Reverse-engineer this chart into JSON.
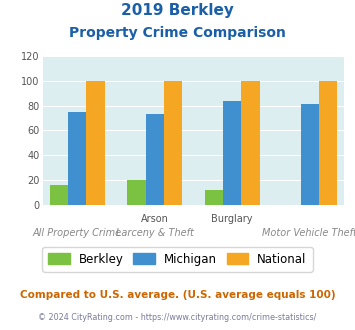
{
  "title_line1": "2019 Berkley",
  "title_line2": "Property Crime Comparison",
  "x_labels_top": [
    "",
    "Arson",
    "Burglary",
    ""
  ],
  "x_labels_bottom": [
    "All Property Crime",
    "Larceny & Theft",
    "",
    "Motor Vehicle Theft"
  ],
  "berkley": [
    16,
    20,
    12,
    0
  ],
  "michigan": [
    75,
    73,
    84,
    81
  ],
  "national": [
    100,
    100,
    100,
    100
  ],
  "color_berkley": "#7bc142",
  "color_michigan": "#4090d0",
  "color_national": "#f5a623",
  "ylim": [
    0,
    120
  ],
  "yticks": [
    0,
    20,
    40,
    60,
    80,
    100,
    120
  ],
  "plot_bg": "#ddeef0",
  "title_color": "#1a5fa8",
  "footnote": "Compared to U.S. average. (U.S. average equals 100)",
  "footnote2": "© 2024 CityRating.com - https://www.cityrating.com/crime-statistics/",
  "footnote_color": "#cc6600",
  "footnote2_color": "#7a7a9a",
  "legend_labels": [
    "Berkley",
    "Michigan",
    "National"
  ]
}
